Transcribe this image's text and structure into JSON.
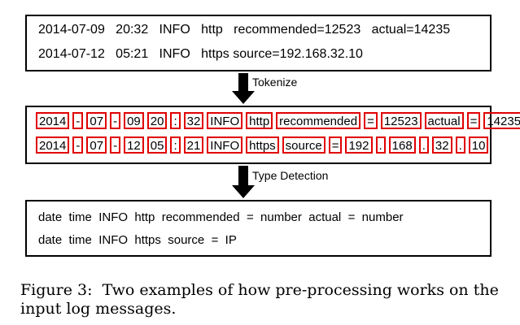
{
  "raw_logs": {
    "line1": "2014-07-09   20:32   INFO   http   recommended=12523   actual=14235",
    "line2": "2014-07-12   05:21   INFO   https source=192.168.32.10"
  },
  "steps": {
    "tokenize": "Tokenize",
    "type_detection": "Type Detection"
  },
  "tokens": {
    "line1": [
      "2014",
      "-",
      "07",
      "-",
      "09",
      "20",
      ":",
      "32",
      "INFO",
      "http",
      "recommended",
      "=",
      "12523",
      "actual",
      "=",
      "14235"
    ],
    "line2": [
      "2014",
      "-",
      "07",
      "-",
      "12",
      "05",
      ":",
      "21",
      "INFO",
      "https",
      "source",
      "=",
      "192",
      ".",
      "168",
      ".",
      "32",
      ".",
      "10"
    ]
  },
  "typed_logs": {
    "line1": "date  time  INFO  http  recommended  =  number  actual  =  number",
    "line2": "date  time  INFO  https  source  =  IP"
  },
  "caption": "Figure 3:  Two examples of how pre-processing works on the\ninput log messages.",
  "colors": {
    "token_border": "#e00000",
    "box_border": "#000000"
  }
}
